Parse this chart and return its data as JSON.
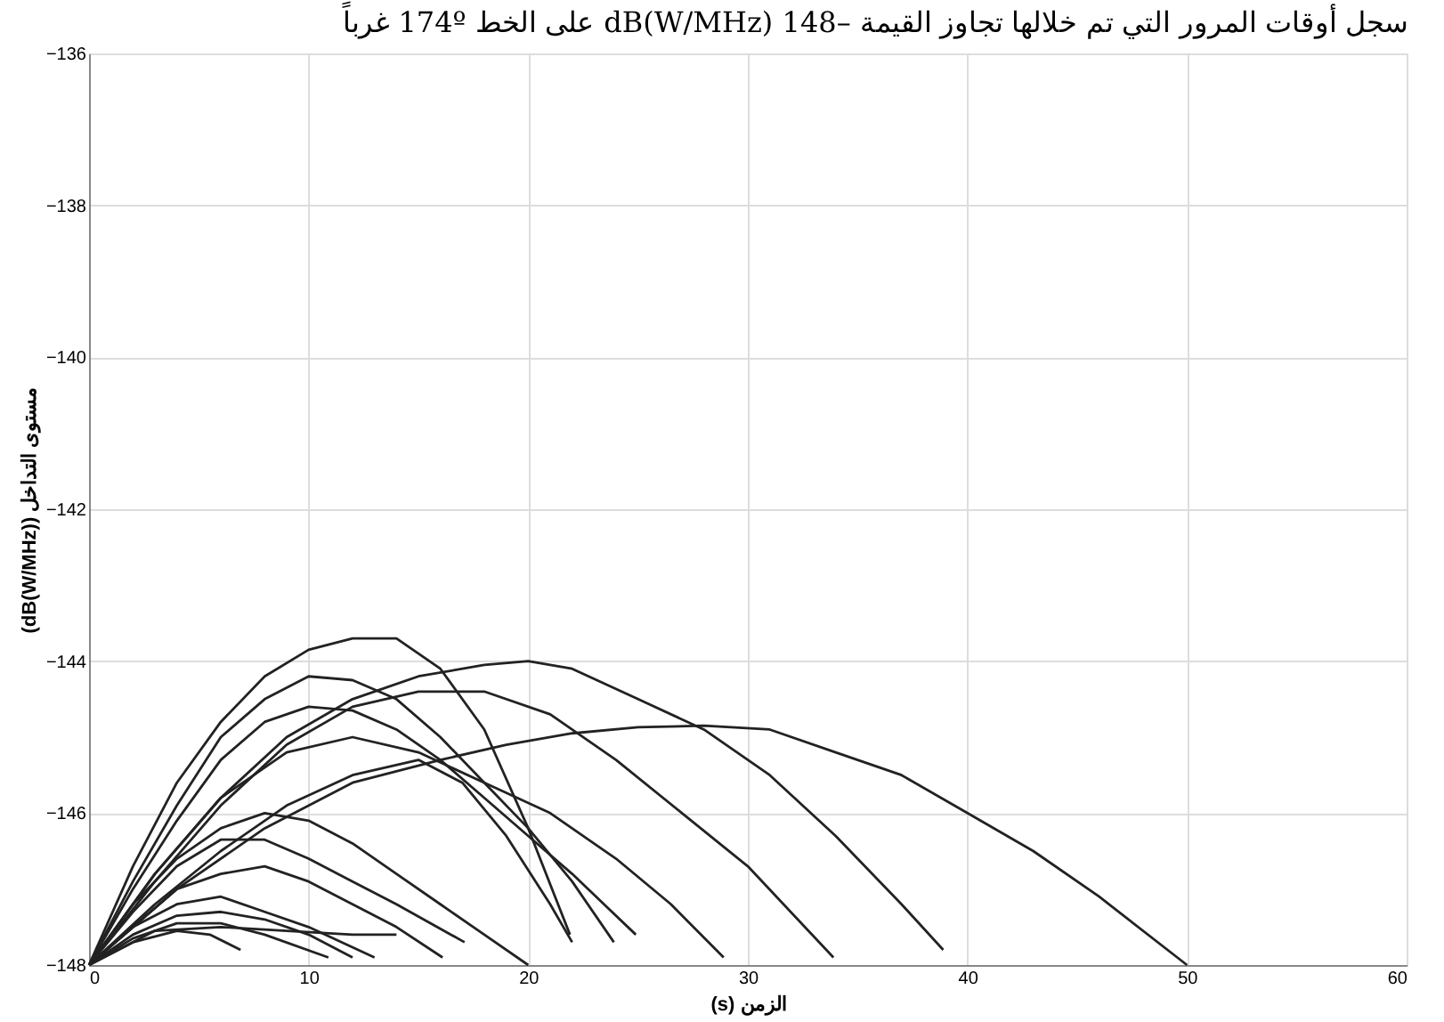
{
  "chart_data": {
    "type": "line",
    "title": "سجل أوقات المرور التي تم خلالها تجاوز القيمة –148 dB(W/MHz) على الخط 174º غرباً",
    "xlabel": "الزمن (s)",
    "ylabel": "مستوى التداخل (dB(W/MHz))",
    "xlim": [
      0,
      60
    ],
    "xticks": [
      0,
      10,
      20,
      30,
      40,
      50,
      60
    ],
    "ylim": [
      -148,
      -136
    ],
    "yticks": [
      -148,
      -146,
      -144,
      -142,
      -140,
      -138,
      -136
    ],
    "grid": true,
    "legend": false,
    "marker": "none",
    "line_style": "solid",
    "series": [
      {
        "color": "#222222",
        "x": [
          0,
          2,
          4,
          6,
          8,
          10,
          12,
          14,
          16,
          18,
          20,
          21.9
        ],
        "values": [
          -148,
          -146.7,
          -145.6,
          -144.8,
          -144.2,
          -143.85,
          -143.7,
          -143.7,
          -144.1,
          -144.9,
          -146.2,
          -147.6
        ]
      },
      {
        "color": "#222222",
        "x": [
          0,
          2,
          4,
          6,
          8,
          10,
          12,
          14,
          16,
          18,
          20,
          22,
          23.9
        ],
        "values": [
          -148,
          -146.9,
          -145.9,
          -145.0,
          -144.5,
          -144.2,
          -144.25,
          -144.5,
          -145.0,
          -145.6,
          -146.2,
          -146.9,
          -147.7
        ]
      },
      {
        "color": "#222222",
        "x": [
          0,
          3,
          6,
          9,
          12,
          15,
          18,
          20,
          22,
          25,
          28,
          31,
          34,
          37,
          38.9
        ],
        "values": [
          -148,
          -146.8,
          -145.8,
          -145.0,
          -144.5,
          -144.2,
          -144.05,
          -144.0,
          -144.1,
          -144.5,
          -144.9,
          -145.5,
          -146.3,
          -147.2,
          -147.8
        ]
      },
      {
        "color": "#222222",
        "x": [
          0,
          4,
          8,
          12,
          16,
          19,
          22,
          25,
          28,
          31,
          34,
          37,
          40,
          43,
          46,
          50
        ],
        "values": [
          -148,
          -147.0,
          -146.2,
          -145.6,
          -145.3,
          -145.1,
          -144.95,
          -144.87,
          -144.85,
          -144.9,
          -145.2,
          -145.5,
          -146.0,
          -146.5,
          -147.1,
          -148
        ]
      },
      {
        "color": "#222222",
        "x": [
          0,
          3,
          6,
          9,
          12,
          15,
          18,
          21,
          24,
          27,
          30,
          33.9
        ],
        "values": [
          -148,
          -146.9,
          -145.9,
          -145.1,
          -144.6,
          -144.4,
          -144.4,
          -144.7,
          -145.3,
          -146.0,
          -146.7,
          -147.9
        ]
      },
      {
        "color": "#222222",
        "x": [
          0,
          2,
          4,
          6,
          8,
          10,
          12,
          14,
          16,
          18,
          20,
          22,
          24.9
        ],
        "values": [
          -148,
          -147.0,
          -146.1,
          -145.3,
          -144.8,
          -144.6,
          -144.65,
          -144.9,
          -145.3,
          -145.8,
          -146.3,
          -146.8,
          -147.6
        ]
      },
      {
        "color": "#222222",
        "x": [
          0,
          3,
          6,
          9,
          12,
          15,
          18,
          21,
          24,
          26.5,
          28.9
        ],
        "values": [
          -148,
          -146.8,
          -145.8,
          -145.2,
          -145.0,
          -145.2,
          -145.6,
          -146.0,
          -146.6,
          -147.2,
          -147.9
        ]
      },
      {
        "color": "#222222",
        "x": [
          0,
          3,
          6,
          9,
          12,
          15,
          17,
          19,
          21,
          22
        ],
        "values": [
          -148,
          -147.2,
          -146.5,
          -145.9,
          -145.5,
          -145.3,
          -145.6,
          -146.3,
          -147.2,
          -147.7
        ]
      },
      {
        "color": "#222222",
        "x": [
          0,
          2,
          4,
          6,
          8,
          10,
          12,
          14,
          16,
          18,
          20
        ],
        "values": [
          -148,
          -147.2,
          -146.6,
          -146.2,
          -146.0,
          -146.1,
          -146.4,
          -146.8,
          -147.2,
          -147.6,
          -148
        ]
      },
      {
        "color": "#222222",
        "x": [
          0,
          2,
          4,
          6,
          8,
          10,
          12,
          14,
          17.1
        ],
        "values": [
          -148,
          -147.3,
          -146.7,
          -146.35,
          -146.35,
          -146.6,
          -146.9,
          -147.2,
          -147.7
        ]
      },
      {
        "color": "#222222",
        "x": [
          0,
          2,
          4,
          6,
          8,
          10,
          12,
          14,
          16.1
        ],
        "values": [
          -148,
          -147.5,
          -147.0,
          -146.8,
          -146.7,
          -146.9,
          -147.2,
          -147.5,
          -147.9
        ]
      },
      {
        "color": "#222222",
        "x": [
          0,
          2,
          4,
          6,
          8,
          10,
          13
        ],
        "values": [
          -148,
          -147.5,
          -147.2,
          -147.1,
          -147.3,
          -147.5,
          -147.9
        ]
      },
      {
        "color": "#222222",
        "x": [
          0,
          2,
          4,
          6,
          8,
          10,
          12
        ],
        "values": [
          -148,
          -147.6,
          -147.35,
          -147.3,
          -147.4,
          -147.6,
          -147.9
        ]
      },
      {
        "color": "#222222",
        "x": [
          0,
          2,
          4,
          6,
          8,
          10.9
        ],
        "values": [
          -148,
          -147.65,
          -147.45,
          -147.45,
          -147.6,
          -147.9
        ]
      },
      {
        "color": "#222222",
        "x": [
          0,
          3,
          6,
          9,
          12,
          14
        ],
        "values": [
          -148,
          -147.55,
          -147.5,
          -147.55,
          -147.6,
          -147.6
        ]
      },
      {
        "color": "#222222",
        "x": [
          0,
          2,
          4,
          5.5,
          6.9
        ],
        "values": [
          -148,
          -147.7,
          -147.55,
          -147.6,
          -147.8
        ]
      }
    ]
  }
}
